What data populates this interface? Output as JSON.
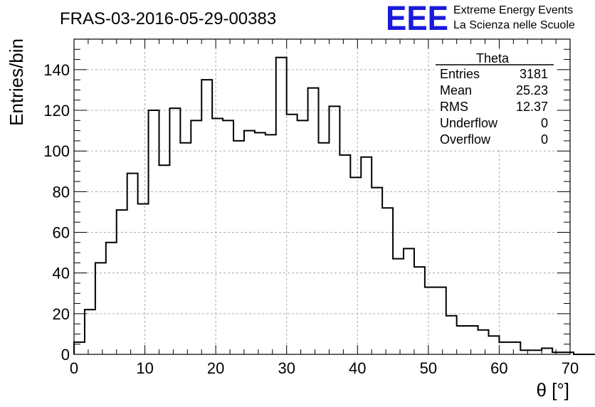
{
  "chart_data": {
    "type": "bar",
    "title": "FRAS-03-2016-05-29-00383",
    "xlabel": "θ [°]",
    "ylabel": "Entries/bin",
    "xlim": [
      0,
      70
    ],
    "ylim": [
      0,
      155
    ],
    "grid": true,
    "xticks": [
      "0",
      "10",
      "20",
      "30",
      "40",
      "50",
      "60",
      "70"
    ],
    "yticks": [
      "0",
      "20",
      "40",
      "60",
      "80",
      "100",
      "120",
      "140"
    ],
    "bin_width": 1.5,
    "bin_edges_start": 0,
    "values": [
      6,
      22,
      45,
      55,
      71,
      89,
      74,
      120,
      93,
      121,
      104,
      115,
      135,
      116,
      115,
      105,
      110,
      109,
      108,
      146,
      118,
      115,
      131,
      104,
      122,
      98,
      87,
      97,
      82,
      72,
      47,
      52,
      43,
      33,
      33,
      19,
      14,
      14,
      12,
      9,
      6,
      6,
      2,
      2,
      3,
      1,
      1,
      0,
      0
    ],
    "line_color": "#000000",
    "stats_box": {
      "title": "Theta",
      "rows": [
        {
          "label": "Entries",
          "value": "3181"
        },
        {
          "label": "Mean",
          "value": "25.23"
        },
        {
          "label": "RMS",
          "value": "12.37"
        },
        {
          "label": "Underflow",
          "value": "0"
        },
        {
          "label": "Overflow",
          "value": "0"
        }
      ]
    }
  },
  "logo": {
    "text": "EEE",
    "line1": "Extreme Energy Events",
    "line2": "La Scienza nelle Scuole",
    "color": "#1a1adc"
  }
}
